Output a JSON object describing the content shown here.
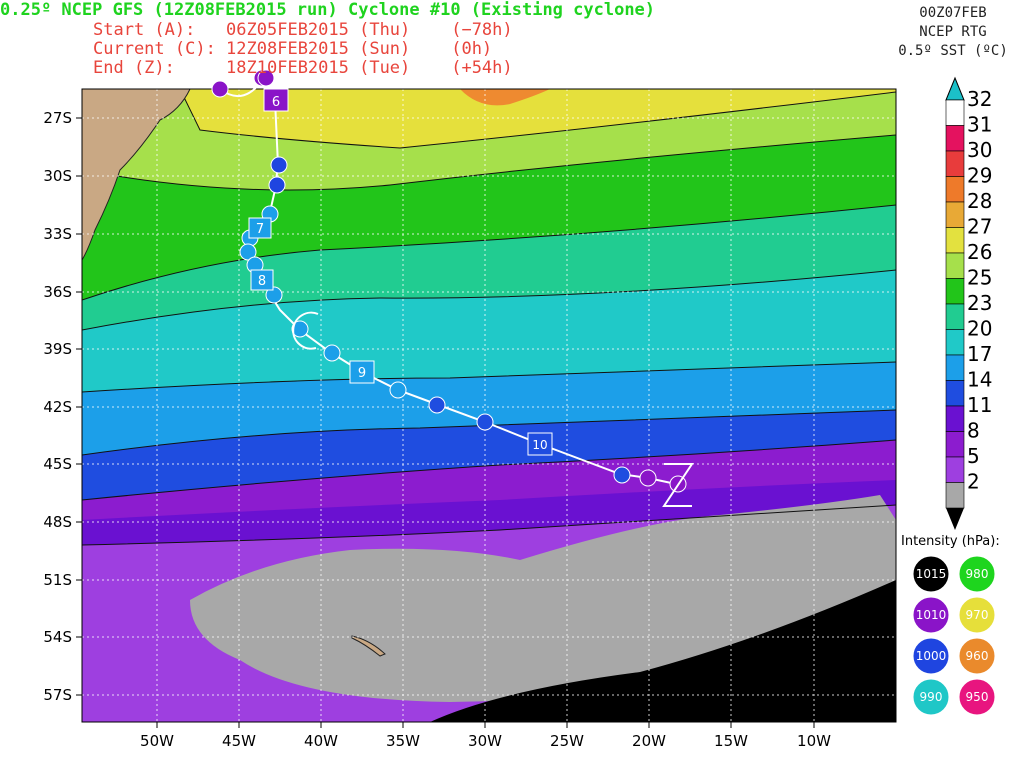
{
  "header": {
    "title": "0.25º NCEP GFS (12Z08FEB2015 run) Cyclone #10 (Existing cyclone)",
    "start": "Start (A):   06Z05FEB2015 (Thu)    (−78h)",
    "current": "Current (C): 12Z08FEB2015 (Sun)    (0h)",
    "end": "End (Z):     18Z10FEB2015 (Tue)    (+54h)"
  },
  "sst_panel": {
    "valid": "00Z07FEB",
    "source": "NCEP RTG",
    "label": "0.5º SST (ºC)"
  },
  "colorbar": {
    "labels": [
      "32",
      "31",
      "30",
      "29",
      "28",
      "27",
      "26",
      "25",
      "23",
      "20",
      "17",
      "14",
      "11",
      "8",
      "5",
      "2"
    ],
    "colors": [
      "#ffffff",
      "#e4125f",
      "#e83c3c",
      "#ee7a2a",
      "#e8a936",
      "#e3e13f",
      "#a6e04b",
      "#22c51a",
      "#21cc91",
      "#20c9c8",
      "#1c9fe9",
      "#1f4de0",
      "#6a11d1",
      "#8c1ccf",
      "#9e3fe0",
      "#a8a8a8"
    ],
    "top_color": "#1bc0c8"
  },
  "axes": {
    "lat_labels": [
      "27S",
      "30S",
      "33S",
      "36S",
      "39S",
      "42S",
      "45S",
      "48S",
      "51S",
      "54S",
      "57S"
    ],
    "lon_labels": [
      "50W",
      "45W",
      "40W",
      "35W",
      "30W",
      "25W",
      "20W",
      "15W",
      "10W"
    ]
  },
  "track": {
    "day_labels": [
      "6",
      "7",
      "8",
      "9",
      "10"
    ],
    "current_marker": "C",
    "end_marker": "Z"
  },
  "intensity_legend": {
    "title": "Intensity (hPa):",
    "items": [
      {
        "value": "1015",
        "color": "#000000"
      },
      {
        "value": "980",
        "color": "#1ed51e"
      },
      {
        "value": "1010",
        "color": "#8a14c8"
      },
      {
        "value": "970",
        "color": "#e6df3a"
      },
      {
        "value": "1000",
        "color": "#1f45e0"
      },
      {
        "value": "960",
        "color": "#ea8a2c"
      },
      {
        "value": "990",
        "color": "#1fc7c7"
      },
      {
        "value": "950",
        "color": "#e8157f"
      }
    ]
  }
}
